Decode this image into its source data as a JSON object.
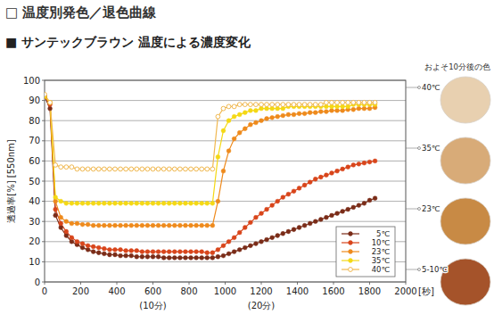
{
  "chart_data": {
    "type": "line",
    "title": "□ 温度別発色／退色曲線",
    "subtitle": "■ サンテックブラウン 温度による濃度変化",
    "x_label": "[秒]",
    "y_label": "透過率[%] [550nm]",
    "x": [
      0,
      30,
      60,
      90,
      120,
      150,
      180,
      210,
      240,
      270,
      300,
      330,
      360,
      390,
      420,
      450,
      480,
      510,
      540,
      570,
      600,
      630,
      660,
      690,
      720,
      750,
      780,
      810,
      840,
      870,
      900,
      930,
      960,
      990,
      1020,
      1050,
      1080,
      1110,
      1140,
      1170,
      1200,
      1230,
      1260,
      1290,
      1320,
      1350,
      1380,
      1410,
      1440,
      1470,
      1500,
      1530,
      1560,
      1590,
      1620,
      1650,
      1680,
      1710,
      1740,
      1770,
      1800,
      1830
    ],
    "xlim": [
      0,
      2000
    ],
    "xticks": [
      0,
      200,
      400,
      600,
      800,
      1000,
      1200,
      1400,
      1600,
      1800,
      2000
    ],
    "ylim": [
      0,
      100
    ],
    "yticks": [
      0,
      10,
      20,
      30,
      40,
      50,
      60,
      70,
      80,
      90,
      100
    ],
    "grid": "y",
    "legend": "lower right",
    "x_notes": [
      {
        "x": 600,
        "label": "(10分)"
      },
      {
        "x": 1200,
        "label": "(20分)"
      }
    ],
    "swatch_title": "およそ10分後の色",
    "swatches": [
      {
        "label": "40℃",
        "color": "#e8d0b0"
      },
      {
        "label": "35℃",
        "color": "#d8ab78"
      },
      {
        "label": "23℃",
        "color": "#c88a45"
      },
      {
        "label": "5-10℃",
        "color": "#a5532a"
      }
    ],
    "series": [
      {
        "name": "5℃",
        "color": "#7a2c18",
        "marker": "circle",
        "line_style": "solid",
        "values": [
          92,
          86,
          33,
          27,
          23,
          20,
          18.5,
          17,
          16,
          15,
          14.5,
          14,
          13.5,
          13.5,
          13,
          13,
          13,
          12.5,
          12.5,
          12.5,
          12.5,
          12.5,
          12,
          12,
          12,
          12,
          12,
          12,
          12,
          12,
          12,
          12,
          12.5,
          13,
          14,
          15,
          16,
          17,
          18,
          19,
          20,
          21,
          22,
          23,
          24,
          25,
          26,
          27,
          28,
          29,
          30,
          31,
          32,
          33,
          34,
          35,
          36,
          37,
          38,
          39,
          40.5,
          41.5
        ]
      },
      {
        "name": "10℃",
        "color": "#d8451b",
        "marker": "circle",
        "line_style": "solid",
        "values": [
          92,
          88,
          36,
          29,
          25,
          22,
          20,
          19,
          18,
          17.5,
          17,
          16.5,
          16,
          16,
          16,
          15.5,
          15.5,
          15.5,
          15,
          15,
          15,
          15,
          15,
          15,
          15,
          15,
          15,
          15,
          15,
          15,
          14.5,
          14.5,
          16,
          18,
          20,
          22,
          24.5,
          27,
          29.5,
          32,
          34,
          36,
          38,
          40,
          42,
          43.5,
          45,
          46.5,
          48,
          49.5,
          51,
          52,
          53,
          54,
          55,
          56,
          57,
          58,
          58.5,
          59,
          59.5,
          60
        ]
      },
      {
        "name": "23℃",
        "color": "#ee8a1c",
        "marker": "circle",
        "line_style": "solid",
        "values": [
          92,
          89,
          40,
          32,
          30,
          29,
          29,
          28.5,
          28.5,
          28,
          28,
          28,
          28,
          28,
          28,
          28,
          28,
          28,
          28,
          28,
          28,
          28,
          28,
          28,
          28,
          28,
          28,
          28,
          28,
          28,
          28,
          28,
          40,
          55,
          65,
          71,
          74,
          76,
          78,
          79,
          80,
          81,
          81.5,
          82,
          82.5,
          83,
          83,
          83.5,
          83.5,
          84,
          84,
          84.5,
          84.5,
          85,
          85,
          85,
          85.5,
          85.5,
          86,
          86,
          86,
          86.5
        ]
      },
      {
        "name": "35℃",
        "color": "#f4d815",
        "marker": "circle",
        "line_style": "solid",
        "values": [
          92,
          89,
          42,
          40,
          39,
          39,
          39,
          39,
          39,
          39,
          39,
          39,
          39,
          39,
          39,
          39,
          39,
          39,
          39,
          39,
          39,
          39,
          39,
          39,
          39,
          39,
          39,
          39,
          39,
          39,
          39,
          39,
          62,
          75,
          80,
          82,
          83,
          84,
          85,
          85,
          86,
          86,
          86,
          86,
          86,
          87,
          87,
          87,
          87,
          87,
          87,
          87,
          87,
          87,
          87,
          87,
          87,
          88,
          88,
          88,
          88,
          88
        ]
      },
      {
        "name": "40℃",
        "color": "#f0b850",
        "marker": "open_circle",
        "line_style": "solid",
        "values": [
          93,
          89,
          58,
          57,
          57,
          57,
          56,
          56,
          56,
          56,
          56,
          56,
          56,
          56,
          56,
          56,
          56,
          56,
          56,
          56,
          56,
          56,
          56,
          56,
          56,
          56,
          56,
          56,
          56,
          56,
          56,
          56,
          82,
          86,
          87,
          87,
          88,
          88,
          88,
          88,
          88,
          88,
          88,
          88,
          88,
          88,
          88,
          88,
          88,
          88,
          88,
          88,
          89,
          89,
          89,
          89,
          89,
          89,
          89,
          89,
          89,
          89
        ]
      }
    ]
  }
}
